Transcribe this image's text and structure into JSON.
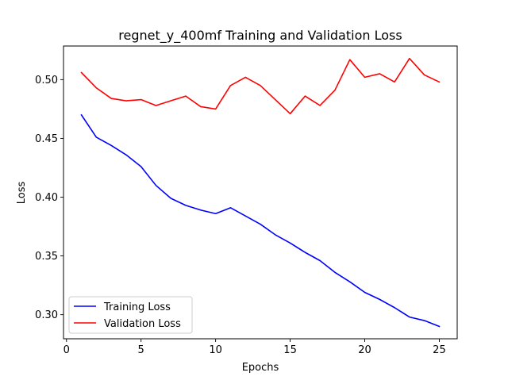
{
  "chart_data": {
    "type": "line",
    "title": "regnet_y_400mf Training and Validation Loss",
    "xlabel": "Epochs",
    "ylabel": "Loss",
    "xlim": [
      -0.2,
      26.2
    ],
    "ylim": [
      0.2795,
      0.5286
    ],
    "xticks": [
      0,
      5,
      10,
      15,
      20,
      25
    ],
    "yticks": [
      0.3,
      0.35,
      0.4,
      0.45,
      0.5
    ],
    "ytick_labels": [
      "0.30",
      "0.35",
      "0.40",
      "0.45",
      "0.50"
    ],
    "grid": false,
    "legend_position": "lower-left",
    "x": [
      1,
      2,
      3,
      4,
      5,
      6,
      7,
      8,
      9,
      10,
      11,
      12,
      13,
      14,
      15,
      16,
      17,
      18,
      19,
      20,
      21,
      22,
      23,
      24,
      25
    ],
    "series": [
      {
        "name": "Training Loss",
        "color": "#0000ff",
        "values": [
          0.47,
          0.451,
          0.444,
          0.436,
          0.426,
          0.41,
          0.399,
          0.393,
          0.389,
          0.386,
          0.391,
          0.384,
          0.377,
          0.368,
          0.361,
          0.353,
          0.346,
          0.336,
          0.328,
          0.319,
          0.313,
          0.306,
          0.298,
          0.295,
          0.29
        ]
      },
      {
        "name": "Validation Loss",
        "color": "#ff0000",
        "values": [
          0.506,
          0.493,
          0.484,
          0.482,
          0.483,
          0.478,
          0.482,
          0.486,
          0.477,
          0.475,
          0.495,
          0.502,
          0.495,
          0.483,
          0.471,
          0.486,
          0.478,
          0.491,
          0.517,
          0.502,
          0.505,
          0.498,
          0.518,
          0.504,
          0.498
        ]
      }
    ]
  }
}
